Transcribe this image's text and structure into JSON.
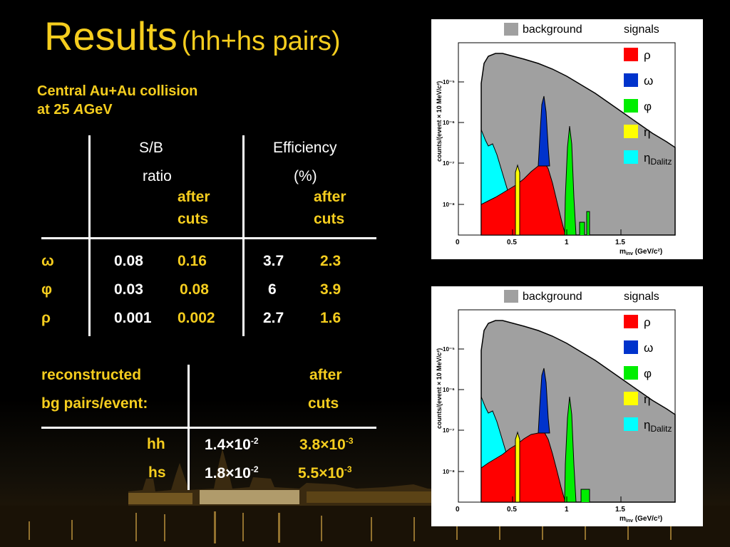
{
  "title": {
    "main": "Results",
    "sub": "(hh+hs pairs)"
  },
  "collision": {
    "line1": "Central Au+Au collision",
    "line2_pre": "at 25 ",
    "line2_italic": "A",
    "line2_post": "GeV"
  },
  "table1": {
    "sb_header": "S/B",
    "sb_header2": "ratio",
    "eff_header": "Efficiency",
    "eff_header2": "(%)",
    "after_cuts_1": "after",
    "after_cuts_2": "cuts",
    "rows": [
      {
        "particle": "ω",
        "sb": "0.08",
        "sb_cut": "0.16",
        "eff": "3.7",
        "eff_cut": "2.3"
      },
      {
        "particle": "φ",
        "sb": "0.03",
        "sb_cut": "0.08",
        "eff": "6",
        "eff_cut": "3.9"
      },
      {
        "particle": "ρ",
        "sb": "0.001",
        "sb_cut": "0.002",
        "eff": "2.7",
        "eff_cut": "1.6"
      }
    ]
  },
  "table2": {
    "label1": "reconstructed",
    "label2": "bg pairs/event:",
    "after_1": "after",
    "after_2": "cuts",
    "rows": [
      {
        "name": "hh",
        "base": "1.4×10",
        "exp": "-2",
        "cut_base": "3.8×10",
        "cut_exp": "-3"
      },
      {
        "name": "hs",
        "base": "1.8×10",
        "exp": "-2",
        "cut_base": "5.5×10",
        "cut_exp": "-3"
      }
    ]
  },
  "plots": [
    {
      "legend": {
        "background": "background",
        "signals": "signals",
        "items": [
          {
            "label": "ρ",
            "sub": "",
            "color": "#ff0000"
          },
          {
            "label": "ω",
            "sub": "",
            "color": "#0033cc"
          },
          {
            "label": "φ",
            "sub": "",
            "color": "#00ee00"
          },
          {
            "label": "η",
            "sub": "",
            "color": "#ffff00"
          },
          {
            "label": "η",
            "sub": "Dalitz",
            "color": "#00ffff"
          }
        ]
      },
      "ylabel": "counts/(event × 10 MeV/c²)",
      "xlabel": "m",
      "xlabel_sub": "inv",
      "xlabel_post": " (GeV/c²)",
      "yticks": [
        "10⁻⁵",
        "10⁻⁶",
        "10⁻⁷",
        "10⁻⁸"
      ],
      "xticks": [
        "0",
        "0.5",
        "1",
        "1.5"
      ]
    },
    {
      "legend": {
        "background": "background",
        "signals": "signals",
        "items": [
          {
            "label": "ρ",
            "sub": "",
            "color": "#ff0000"
          },
          {
            "label": "ω",
            "sub": "",
            "color": "#0033cc"
          },
          {
            "label": "φ",
            "sub": "",
            "color": "#00ee00"
          },
          {
            "label": "η",
            "sub": "",
            "color": "#ffff00"
          },
          {
            "label": "η",
            "sub": "Dalitz",
            "color": "#00ffff"
          }
        ]
      },
      "ylabel": "counts/(event × 10 MeV/c²)",
      "xlabel": "m",
      "xlabel_sub": "inv",
      "xlabel_post": " (GeV/c²)",
      "yticks": [
        "10⁻⁵",
        "10⁻⁶",
        "10⁻⁷",
        "10⁻⁸"
      ],
      "xticks": [
        "0",
        "0.5",
        "1",
        "1.5"
      ]
    }
  ],
  "colors": {
    "accent": "#f5cd1e",
    "background_hist": "#a0a0a0"
  }
}
